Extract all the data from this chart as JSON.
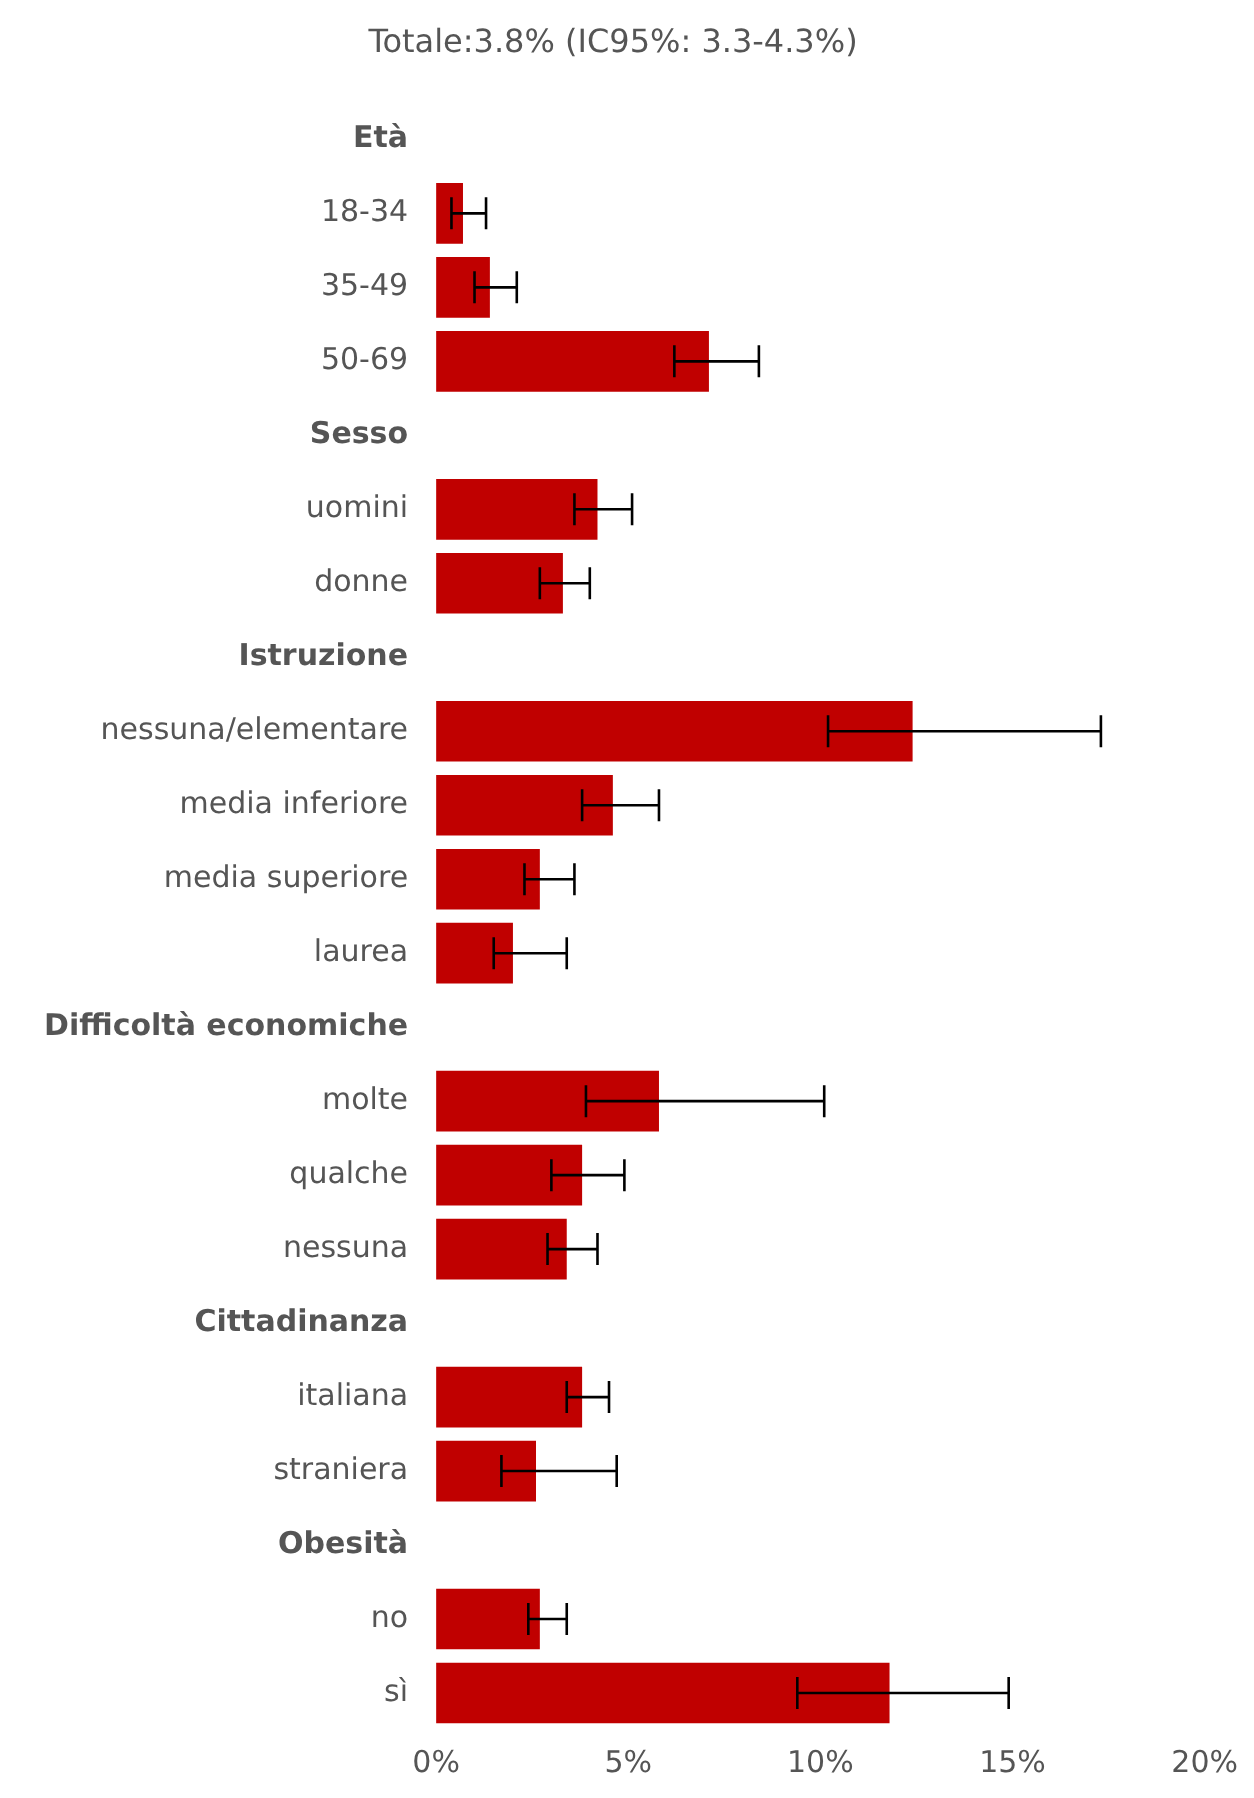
{
  "chart_data": {
    "type": "bar",
    "orientation": "horizontal",
    "title": "Totale:3.8% (IC95%: 3.3-4.3%)",
    "categories": [
      "Età",
      "18-34",
      "35-49",
      "50-69",
      "Sesso",
      "uomini",
      "donne",
      "Istruzione",
      "nessuna/elementare",
      "media inferiore",
      "media superiore",
      "laurea",
      "Difficoltà economiche",
      "molte",
      "qualche",
      "nessuna",
      "Cittadinanza",
      "italiana",
      "straniera",
      "Obesità",
      "no",
      "sì"
    ],
    "values": [
      null,
      0.7,
      1.4,
      7.1,
      null,
      4.2,
      3.3,
      null,
      12.4,
      4.6,
      2.7,
      2.0,
      null,
      5.8,
      3.8,
      3.4,
      null,
      3.8,
      2.6,
      null,
      2.7,
      11.8
    ],
    "errors": [
      null,
      [
        0.4,
        1.3
      ],
      [
        1.0,
        2.1
      ],
      [
        6.2,
        8.4
      ],
      null,
      [
        3.6,
        5.1
      ],
      [
        2.7,
        4.0
      ],
      null,
      [
        10.2,
        17.3
      ],
      [
        3.8,
        5.8
      ],
      [
        2.3,
        3.6
      ],
      [
        1.5,
        3.4
      ],
      null,
      [
        3.9,
        10.1
      ],
      [
        3.0,
        4.9
      ],
      [
        2.9,
        4.2
      ],
      null,
      [
        3.4,
        4.5
      ],
      [
        1.7,
        4.7
      ],
      null,
      [
        2.4,
        3.4
      ],
      [
        9.4,
        14.9
      ]
    ],
    "color": "#c00000",
    "xlim": [
      0,
      20
    ],
    "xticks": [
      {
        "value": 0,
        "label": "0%"
      },
      {
        "value": 5,
        "label": "5%"
      },
      {
        "value": 10,
        "label": "10%"
      },
      {
        "value": 15,
        "label": "15%"
      },
      {
        "value": 20,
        "label": "20%"
      }
    ],
    "grid": false,
    "legend": false
  }
}
